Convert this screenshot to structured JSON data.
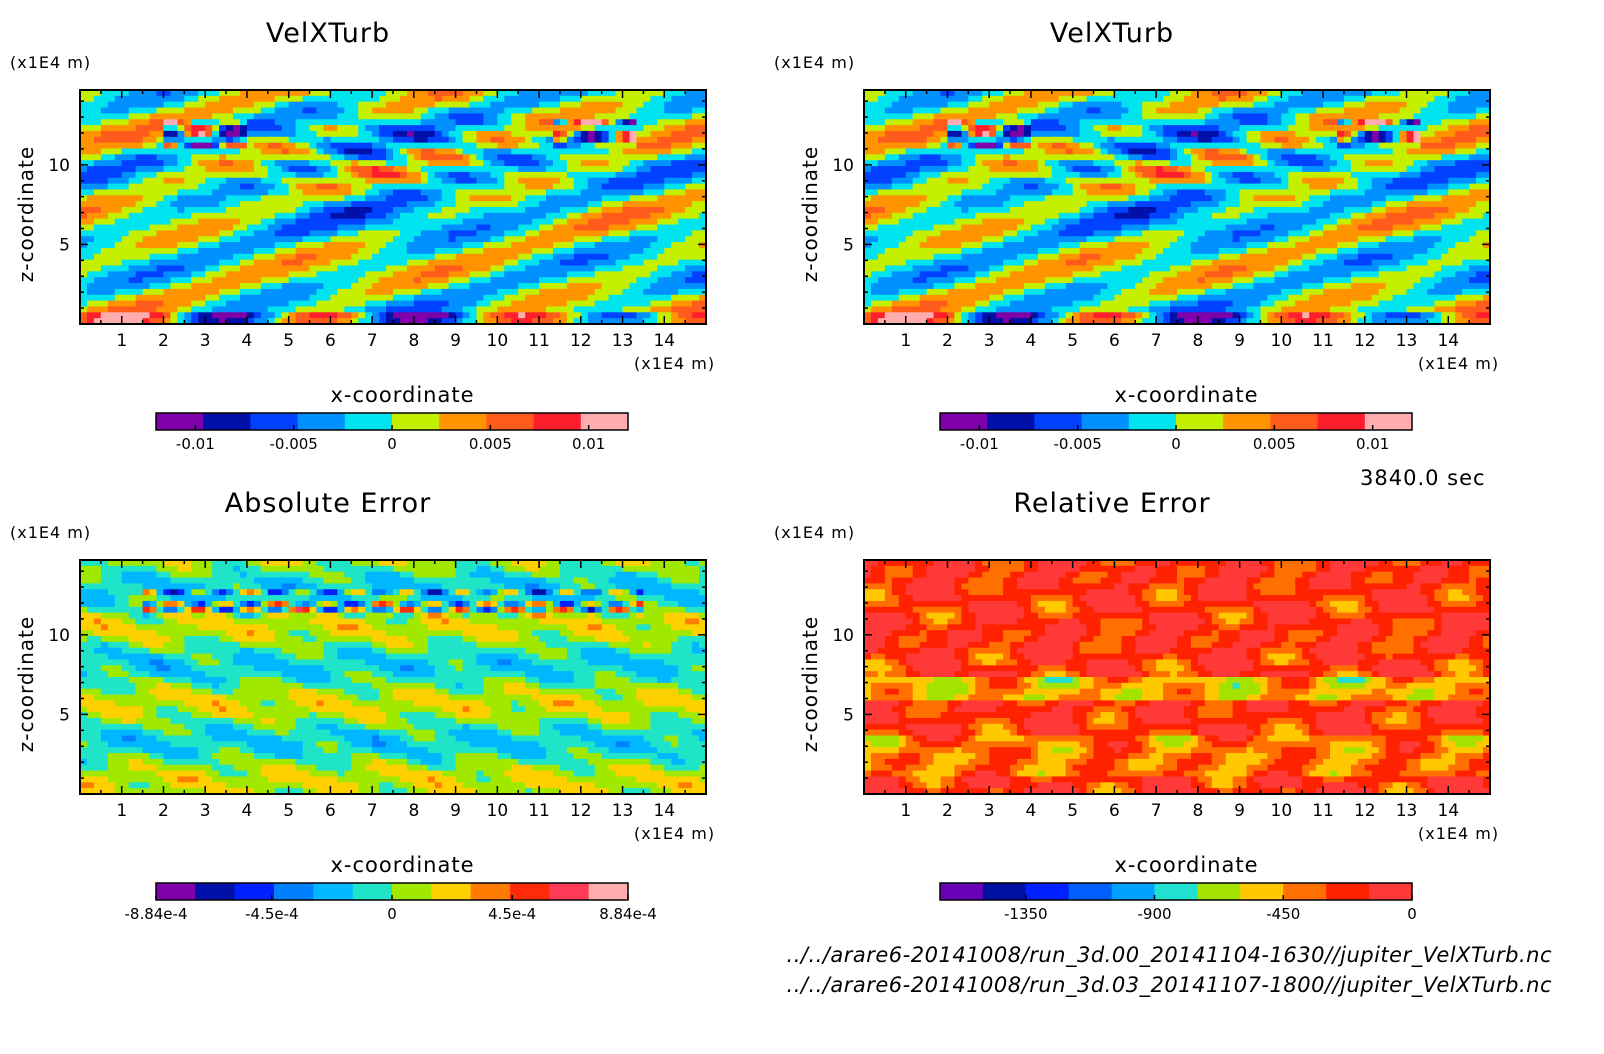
{
  "time_label": "3840.0 sec",
  "files": [
    "../../arare6-20141008/run_3d.00_20141104-1630//jupiter_VelXTurb.nc",
    "../../arare6-20141008/run_3d.03_20141107-1800//jupiter_VelXTurb.nc"
  ],
  "colorbar_palettes": {
    "main": [
      "#7f00a8",
      "#0010a8",
      "#0042ff",
      "#0090ff",
      "#00e4f0",
      "#c4f000",
      "#ff9400",
      "#ff5c1c",
      "#ff1e2c",
      "#ffadae"
    ],
    "abs": [
      "#7f00a8",
      "#0010a8",
      "#0020ff",
      "#0080ff",
      "#00b8ff",
      "#20e4c8",
      "#a0e800",
      "#ffd000",
      "#ff7c00",
      "#ff2c0c",
      "#ff3a56",
      "#ffadae"
    ],
    "rel": [
      "#6800b8",
      "#0010a0",
      "#0020ff",
      "#0060ff",
      "#00a0ff",
      "#20e0d0",
      "#a4e200",
      "#ffc800",
      "#ff7000",
      "#ff2200",
      "#ff3838"
    ]
  },
  "chart_data": [
    {
      "type": "heatmap",
      "title": "VelXTurb",
      "xlabel": "x-coordinate",
      "ylabel": "z-coordinate",
      "x_unit": "(x1E4 m)",
      "y_unit": "(x1E4 m)",
      "xlim": [
        0,
        15
      ],
      "ylim": [
        0,
        14.7
      ],
      "x_ticks": [
        1,
        2,
        3,
        4,
        5,
        6,
        7,
        8,
        9,
        10,
        11,
        12,
        13,
        14
      ],
      "y_ticks": [
        5,
        10
      ],
      "colorbar_ticks": [
        -0.01,
        -0.005,
        0,
        0.005,
        0.01
      ],
      "colorbar_tick_labels": [
        "-0.01",
        "-0.005",
        "0",
        "0.005",
        "0.01"
      ],
      "colorbar_range": [
        -0.012,
        0.012
      ],
      "palette": "main",
      "field": "velx"
    },
    {
      "type": "heatmap",
      "title": "VelXTurb",
      "xlabel": "x-coordinate",
      "ylabel": "z-coordinate",
      "x_unit": "(x1E4 m)",
      "y_unit": "(x1E4 m)",
      "xlim": [
        0,
        15
      ],
      "ylim": [
        0,
        14.7
      ],
      "x_ticks": [
        1,
        2,
        3,
        4,
        5,
        6,
        7,
        8,
        9,
        10,
        11,
        12,
        13,
        14
      ],
      "y_ticks": [
        5,
        10
      ],
      "colorbar_ticks": [
        -0.01,
        -0.005,
        0,
        0.005,
        0.01
      ],
      "colorbar_tick_labels": [
        "-0.01",
        "-0.005",
        "0",
        "0.005",
        "0.01"
      ],
      "colorbar_range": [
        -0.012,
        0.012
      ],
      "palette": "main",
      "field": "velx"
    },
    {
      "type": "heatmap",
      "title": "Absolute Error",
      "xlabel": "x-coordinate",
      "ylabel": "z-coordinate",
      "x_unit": "(x1E4 m)",
      "y_unit": "(x1E4 m)",
      "xlim": [
        0,
        15
      ],
      "ylim": [
        0,
        14.7
      ],
      "x_ticks": [
        1,
        2,
        3,
        4,
        5,
        6,
        7,
        8,
        9,
        10,
        11,
        12,
        13,
        14
      ],
      "y_ticks": [
        5,
        10
      ],
      "colorbar_ticks": [
        -0.000884,
        -0.00045,
        0,
        0.00045,
        0.000884
      ],
      "colorbar_tick_labels": [
        "-8.84e-4",
        "-4.5e-4",
        "0",
        "4.5e-4",
        "8.84e-4"
      ],
      "colorbar_range": [
        -0.000884,
        0.000884
      ],
      "palette": "abs",
      "field": "abs"
    },
    {
      "type": "heatmap",
      "title": "Relative Error",
      "xlabel": "x-coordinate",
      "ylabel": "z-coordinate",
      "x_unit": "(x1E4 m)",
      "y_unit": "(x1E4 m)",
      "xlim": [
        0,
        15
      ],
      "ylim": [
        0,
        14.7
      ],
      "x_ticks": [
        1,
        2,
        3,
        4,
        5,
        6,
        7,
        8,
        9,
        10,
        11,
        12,
        13,
        14
      ],
      "y_ticks": [
        5,
        10
      ],
      "colorbar_ticks": [
        -1350,
        -900,
        -450,
        0
      ],
      "colorbar_tick_labels": [
        "-1350",
        "-900",
        "-450",
        "0"
      ],
      "colorbar_range": [
        -1650,
        0
      ],
      "palette": "rel",
      "field": "rel"
    }
  ]
}
